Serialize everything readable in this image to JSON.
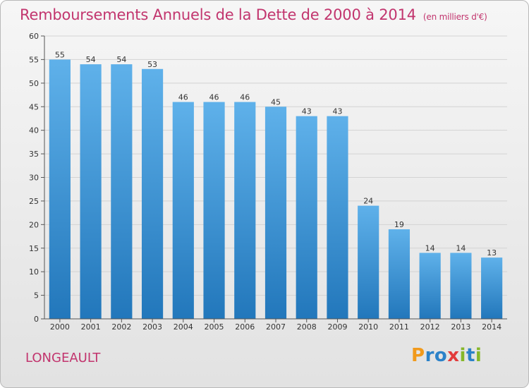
{
  "title": "Remboursements Annuels de la Dette de 2000 à 2014",
  "subtitle": "(en milliers d'€)",
  "place": "LONGEAULT",
  "brand": "Proxiti",
  "colors": {
    "title": "#c2356e",
    "bar_top": "#5fb1ea",
    "bar_bottom": "#2277bb",
    "logo_letters": [
      "#f19a1c",
      "#2b82c9",
      "#2b82c9",
      "#e23b3b",
      "#86b72a",
      "#2b82c9",
      "#86b72a"
    ]
  },
  "chart_data": {
    "type": "bar",
    "categories": [
      "2000",
      "2001",
      "2002",
      "2003",
      "2004",
      "2005",
      "2006",
      "2007",
      "2008",
      "2009",
      "2010",
      "2011",
      "2012",
      "2013",
      "2014"
    ],
    "values": [
      55,
      54,
      54,
      53,
      46,
      46,
      46,
      45,
      43,
      43,
      24,
      19,
      14,
      14,
      13
    ],
    "ylim": [
      0,
      60
    ],
    "yticks": [
      0,
      5,
      10,
      15,
      20,
      25,
      30,
      35,
      40,
      45,
      50,
      55,
      60
    ],
    "grid": true,
    "data_labels": true
  }
}
